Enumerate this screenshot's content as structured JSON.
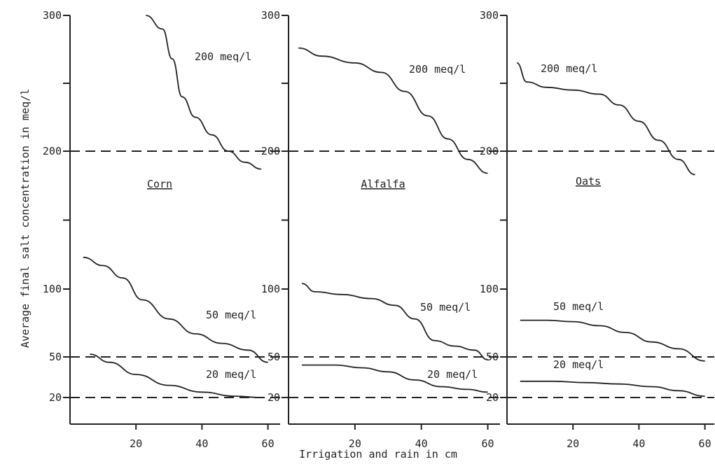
{
  "chart_data": {
    "type": "line",
    "xlabel": "Irrigation and rain in cm",
    "ylabel": "Average final salt concentration in meq/l",
    "x_ticks": [
      20,
      40,
      60
    ],
    "xlim": [
      0,
      62
    ],
    "y_scale": "piecewise",
    "y_ticks": [
      20,
      50,
      100,
      200,
      300
    ],
    "y_tick_labels": {
      "panel_1": [
        "20",
        "50",
        "100",
        "200",
        "300"
      ],
      "panel_2": [
        "20",
        "50",
        "100",
        "200",
        "300"
      ],
      "panel_3": [
        "20",
        "50",
        "100",
        "200",
        "300"
      ]
    },
    "reference_lines_y": [
      20,
      50,
      200
    ],
    "panels": [
      {
        "title": "Corn",
        "series": [
          {
            "name": "200 meq/l",
            "x": [
              23,
              28,
              31,
              34,
              38,
              43,
              48,
              53,
              58
            ],
            "y": [
              300,
              290,
              268,
              240,
              225,
              212,
              200,
              192,
              187
            ]
          },
          {
            "name": "50 meq/l",
            "x": [
              4,
              10,
              16,
              22,
              30,
              38,
              46,
              54,
              60
            ],
            "y": [
              123,
              117,
              108,
              92,
              78,
              67,
              60,
              55,
              46
            ]
          },
          {
            "name": "20 meq/l",
            "x": [
              6,
              12,
              20,
              30,
              40,
              50,
              58
            ],
            "y": [
              52,
              46,
              37,
              29,
              24,
              21,
              20
            ]
          }
        ]
      },
      {
        "title": "Alfalfa",
        "series": [
          {
            "name": "200 meq/l",
            "x": [
              3,
              10,
              20,
              28,
              35,
              42,
              48,
              54,
              60
            ],
            "y": [
              276,
              270,
              265,
              258,
              244,
              226,
              209,
              194,
              184
            ]
          },
          {
            "name": "50 meq/l",
            "x": [
              4,
              8,
              16,
              25,
              32,
              38,
              44,
              50,
              56,
              60
            ],
            "y": [
              104,
              98,
              96,
              93,
              88,
              78,
              62,
              58,
              55,
              48
            ]
          },
          {
            "name": "20 meq/l",
            "x": [
              4,
              14,
              22,
              30,
              38,
              46,
              54,
              60
            ],
            "y": [
              44,
              44,
              42,
              39,
              33,
              28,
              26,
              24
            ]
          }
        ]
      },
      {
        "title": "Oats",
        "series": [
          {
            "name": "200 meq/l",
            "x": [
              3,
              6,
              12,
              20,
              28,
              34,
              40,
              46,
              52,
              57
            ],
            "y": [
              265,
              251,
              247,
              245,
              242,
              234,
              222,
              208,
              194,
              183
            ]
          },
          {
            "name": "50 meq/l",
            "x": [
              4,
              12,
              20,
              28,
              36,
              44,
              52,
              60
            ],
            "y": [
              77,
              77,
              76,
              73,
              68,
              61,
              56,
              47
            ]
          },
          {
            "name": "20 meq/l",
            "x": [
              4,
              14,
              24,
              34,
              44,
              52,
              60
            ],
            "y": [
              32,
              32,
              31,
              30,
              28,
              25,
              21
            ]
          }
        ]
      }
    ]
  }
}
